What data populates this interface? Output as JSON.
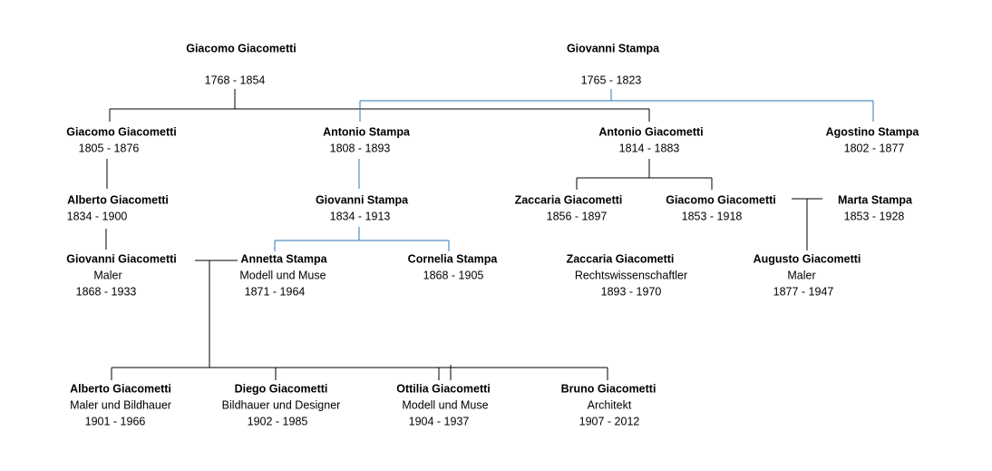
{
  "nodes": [
    {
      "name": "Giacomo Giacometti",
      "years": "1768 - 1854",
      "color": "#000000"
    },
    {
      "name": "Giovanni Stampa",
      "years": "1765 - 1823",
      "color": "#1f6fb5"
    },
    {
      "name": "Giacomo Giacometti",
      "years": "1805 - 1876",
      "color": "#000000"
    },
    {
      "name": "Antonio Stampa",
      "years": "1808 - 1893",
      "color": "#1f6fb5"
    },
    {
      "name": "Antonio Giacometti",
      "years": "1814 - 1883",
      "color": "#000000"
    },
    {
      "name": "Agostino Stampa",
      "years": "1802 - 1877",
      "color": "#1f6fb5"
    },
    {
      "name": "Alberto Giacometti",
      "years": "1834 - 1900",
      "color": "#000000"
    },
    {
      "name": "Giovanni Stampa",
      "years": "1834 - 1913",
      "color": "#1f6fb5"
    },
    {
      "name": "Zaccaria Giacometti",
      "years": "1856 - 1897",
      "color": "#000000"
    },
    {
      "name": "Giacomo Giacometti",
      "years": "1853 - 1918",
      "color": "#000000"
    },
    {
      "name": "Marta Stampa",
      "years": "1853 - 1928",
      "color": "#4a86c5"
    },
    {
      "name": "Giovanni Giacometti",
      "role": "Maler",
      "years": "1868 - 1933",
      "color": "#e81010"
    },
    {
      "name": "Annetta Stampa",
      "role": "Modell und Muse",
      "years": "1871 - 1964",
      "color": "#1f6fb5"
    },
    {
      "name": "Cornelia Stampa",
      "years": "1868 - 1905",
      "color": "#1f6fb5"
    },
    {
      "name": "Zaccaria Giacometti",
      "role": "Rechtswissenschaftler",
      "years": "1893 - 1970",
      "color": "#e81010"
    },
    {
      "name": "Augusto Giacometti",
      "role": "Maler",
      "years": "1877 - 1947",
      "color": "#e81010"
    },
    {
      "name": "Alberto Giacometti",
      "role": "Maler und Bildhauer",
      "years": "1901 - 1966",
      "color": "#e81010"
    },
    {
      "name": "Diego Giacometti",
      "role": "Bildhauer und Designer",
      "years": "1902 - 1985",
      "color": "#e81010"
    },
    {
      "name": "Ottilia Giacometti",
      "role": "Modell und Muse",
      "years": "1904 - 1937",
      "color": "#000000"
    },
    {
      "name": "Bruno Giacometti",
      "role": "Architekt",
      "years": "1907 - 2012",
      "color": "#e81010"
    }
  ]
}
